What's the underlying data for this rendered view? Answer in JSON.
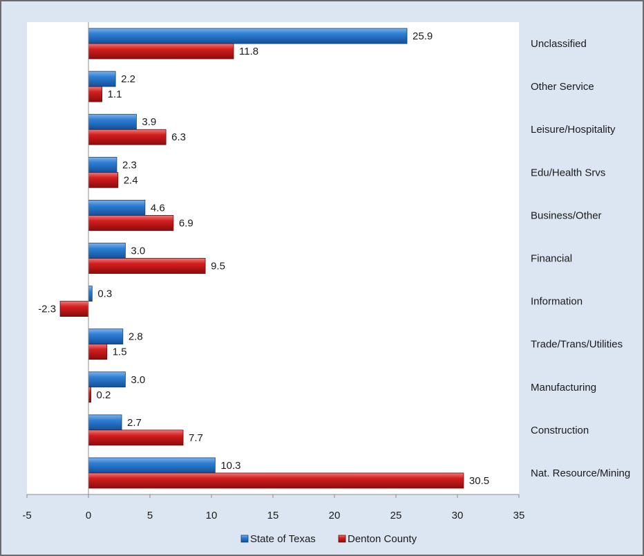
{
  "chart_data": {
    "type": "bar",
    "orientation": "horizontal",
    "categories": [
      "Nat. Resource/Mining",
      "Construction",
      "Manufacturing",
      "Trade/Trans/Utilities",
      "Information",
      "Financial",
      "Business/Other",
      "Edu/Health Srvs",
      "Leisure/Hospitality",
      "Other Service",
      "Unclassified"
    ],
    "series": [
      {
        "name": "State of Texas",
        "color": "#1f6fc4",
        "values": [
          10.3,
          2.7,
          3.0,
          2.8,
          0.3,
          3.0,
          4.6,
          2.3,
          3.9,
          2.2,
          25.9
        ],
        "labels": [
          "10.3",
          "2.7",
          "3.0",
          "2.8",
          "0.3",
          "3.0",
          "4.6",
          "2.3",
          "3.9",
          "2.2",
          "25.9"
        ]
      },
      {
        "name": "Denton County",
        "color": "#c81919",
        "values": [
          30.5,
          7.7,
          0.2,
          1.5,
          -2.3,
          9.5,
          6.9,
          2.4,
          6.3,
          1.1,
          11.8
        ],
        "labels": [
          "30.5",
          "7.7",
          "0.2",
          "1.5",
          "-2.3",
          "9.5",
          "6.9",
          "2.4",
          "6.3",
          "1.1",
          "11.8"
        ]
      }
    ],
    "xlim": [
      -5,
      35
    ],
    "xticks": [
      "-5",
      "0",
      "5",
      "10",
      "15",
      "20",
      "25",
      "30",
      "35"
    ],
    "xtick_values": [
      -5,
      0,
      5,
      10,
      15,
      20,
      25,
      30,
      35
    ],
    "category_label_position": "right",
    "legend_position": "bottom",
    "grid": false,
    "title": "",
    "xlabel": "",
    "ylabel": ""
  }
}
